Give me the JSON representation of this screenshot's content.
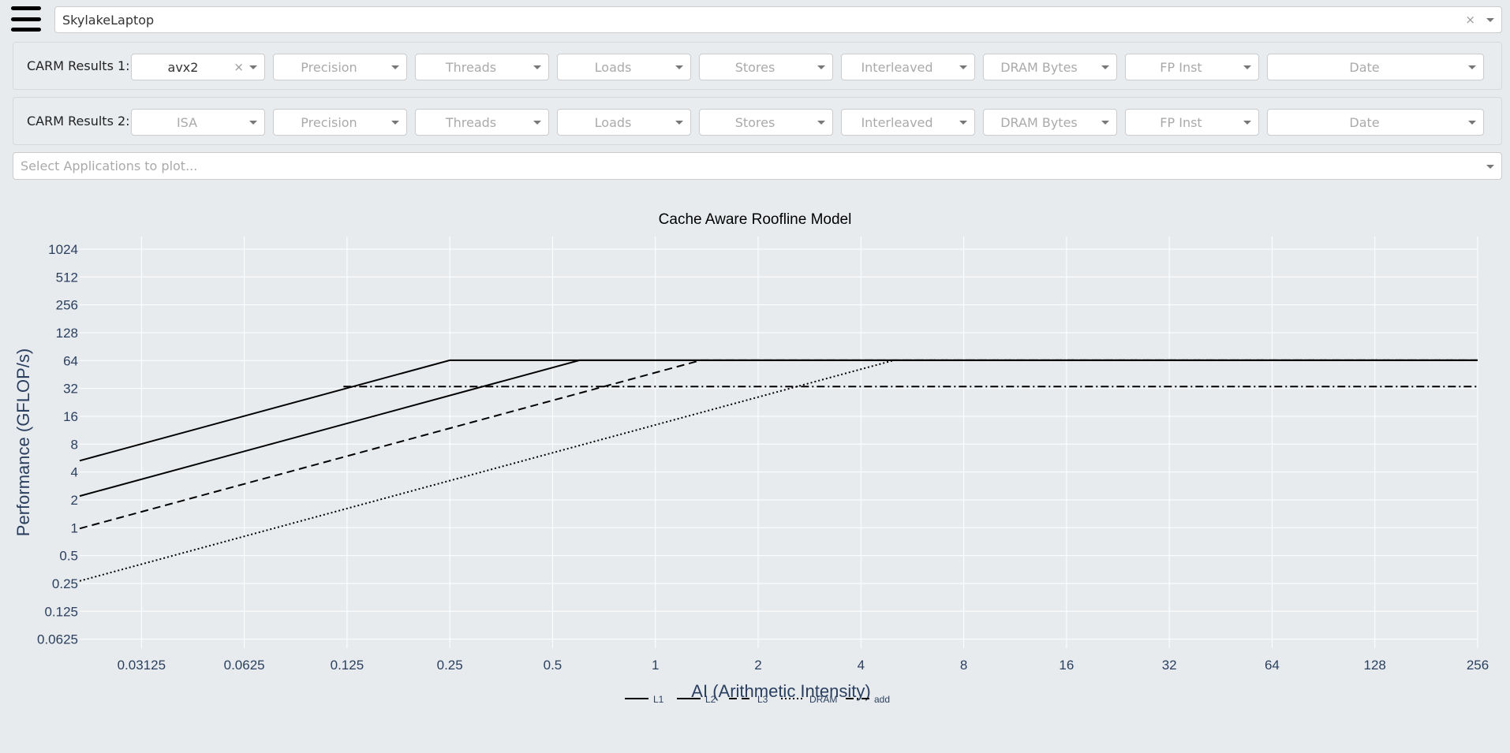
{
  "header": {
    "menu_icon": "hamburger-menu-icon",
    "machine_select": {
      "value": "SkylakeLaptop",
      "clear_label": "×"
    }
  },
  "carm1": {
    "label": "CARM Results 1:",
    "isa": {
      "value": "avx2",
      "clear_label": "×"
    },
    "precision_placeholder": "Precision",
    "threads_placeholder": "Threads",
    "loads_placeholder": "Loads",
    "stores_placeholder": "Stores",
    "interleaved_placeholder": "Interleaved",
    "dram_bytes_placeholder": "DRAM Bytes",
    "fp_inst_placeholder": "FP Inst",
    "date_placeholder": "Date"
  },
  "carm2": {
    "label": "CARM Results 2:",
    "isa_placeholder": "ISA",
    "precision_placeholder": "Precision",
    "threads_placeholder": "Threads",
    "loads_placeholder": "Loads",
    "stores_placeholder": "Stores",
    "interleaved_placeholder": "Interleaved",
    "dram_bytes_placeholder": "DRAM Bytes",
    "fp_inst_placeholder": "FP Inst",
    "date_placeholder": "Date"
  },
  "applications": {
    "placeholder": "Select Applications to plot..."
  },
  "colors": {
    "background": "#e8ebee",
    "line": "#000000",
    "grid": "#ffffff",
    "axis_text": "#2a3f5f"
  },
  "chart_data": {
    "type": "line",
    "title": "Cache Aware Roofline Model",
    "xlabel": "AI (Arithmetic Intensity)",
    "ylabel": "Performance (GFLOP/s)",
    "xscale": "log2",
    "yscale": "log2",
    "xlim": [
      0.0206,
      256
    ],
    "ylim": [
      0.05,
      1400
    ],
    "x_ticks": [
      0.03125,
      0.0625,
      0.125,
      0.25,
      0.5,
      1,
      2,
      4,
      8,
      16,
      32,
      64,
      128,
      256
    ],
    "x_tick_labels": [
      "0.03125",
      "0.0625",
      "0.125",
      "0.25",
      "0.5",
      "1",
      "2",
      "4",
      "8",
      "16",
      "32",
      "64",
      "128",
      "256"
    ],
    "y_ticks": [
      0.0625,
      0.125,
      0.25,
      0.5,
      1,
      2,
      4,
      8,
      16,
      32,
      64,
      128,
      256,
      512,
      1024
    ],
    "y_tick_labels": [
      "0.0625",
      "0.125",
      "0.25",
      "0.5",
      "1",
      "2",
      "4",
      "8",
      "16",
      "32",
      "64",
      "128",
      "256",
      "512",
      "1024"
    ],
    "grid": true,
    "legend_position": "bottom-center",
    "series": [
      {
        "name": "L1",
        "dash": "solid",
        "x": [
          0.0206,
          0.25,
          256
        ],
        "y": [
          5.3,
          64.5,
          64.5
        ]
      },
      {
        "name": "L2",
        "dash": "solid",
        "x": [
          0.0206,
          0.6,
          256
        ],
        "y": [
          2.2,
          64.5,
          64.5
        ]
      },
      {
        "name": "L3",
        "dash": "dash",
        "x": [
          0.0206,
          1.36,
          256
        ],
        "y": [
          0.98,
          64.5,
          64.5
        ]
      },
      {
        "name": "DRAM",
        "dash": "dot",
        "x": [
          0.0206,
          5.0,
          256
        ],
        "y": [
          0.266,
          64.5,
          64.5
        ]
      },
      {
        "name": "add",
        "dash": "dashdot",
        "x": [
          0.122,
          256
        ],
        "y": [
          33.5,
          33.5
        ]
      }
    ]
  }
}
